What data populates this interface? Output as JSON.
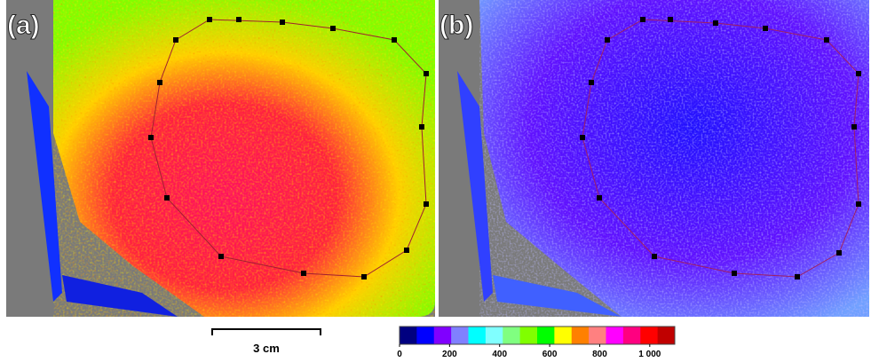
{
  "panels": [
    {
      "label": "(a)"
    },
    {
      "label": "(b)"
    }
  ],
  "scale_bar": {
    "label": "3 cm"
  },
  "colorbar": {
    "colors": [
      "#000080",
      "#0000ff",
      "#8000ff",
      "#8080ff",
      "#00ffff",
      "#80ffff",
      "#80ff80",
      "#80ff00",
      "#00ff00",
      "#ffff00",
      "#ff8000",
      "#ff8080",
      "#ff00ff",
      "#ff0080",
      "#ff0000",
      "#c00000"
    ],
    "lim": [
      0,
      1100
    ],
    "ticks": [
      0,
      200,
      400,
      600,
      800,
      {
        "value": 1000,
        "label": "1 000"
      }
    ]
  }
}
